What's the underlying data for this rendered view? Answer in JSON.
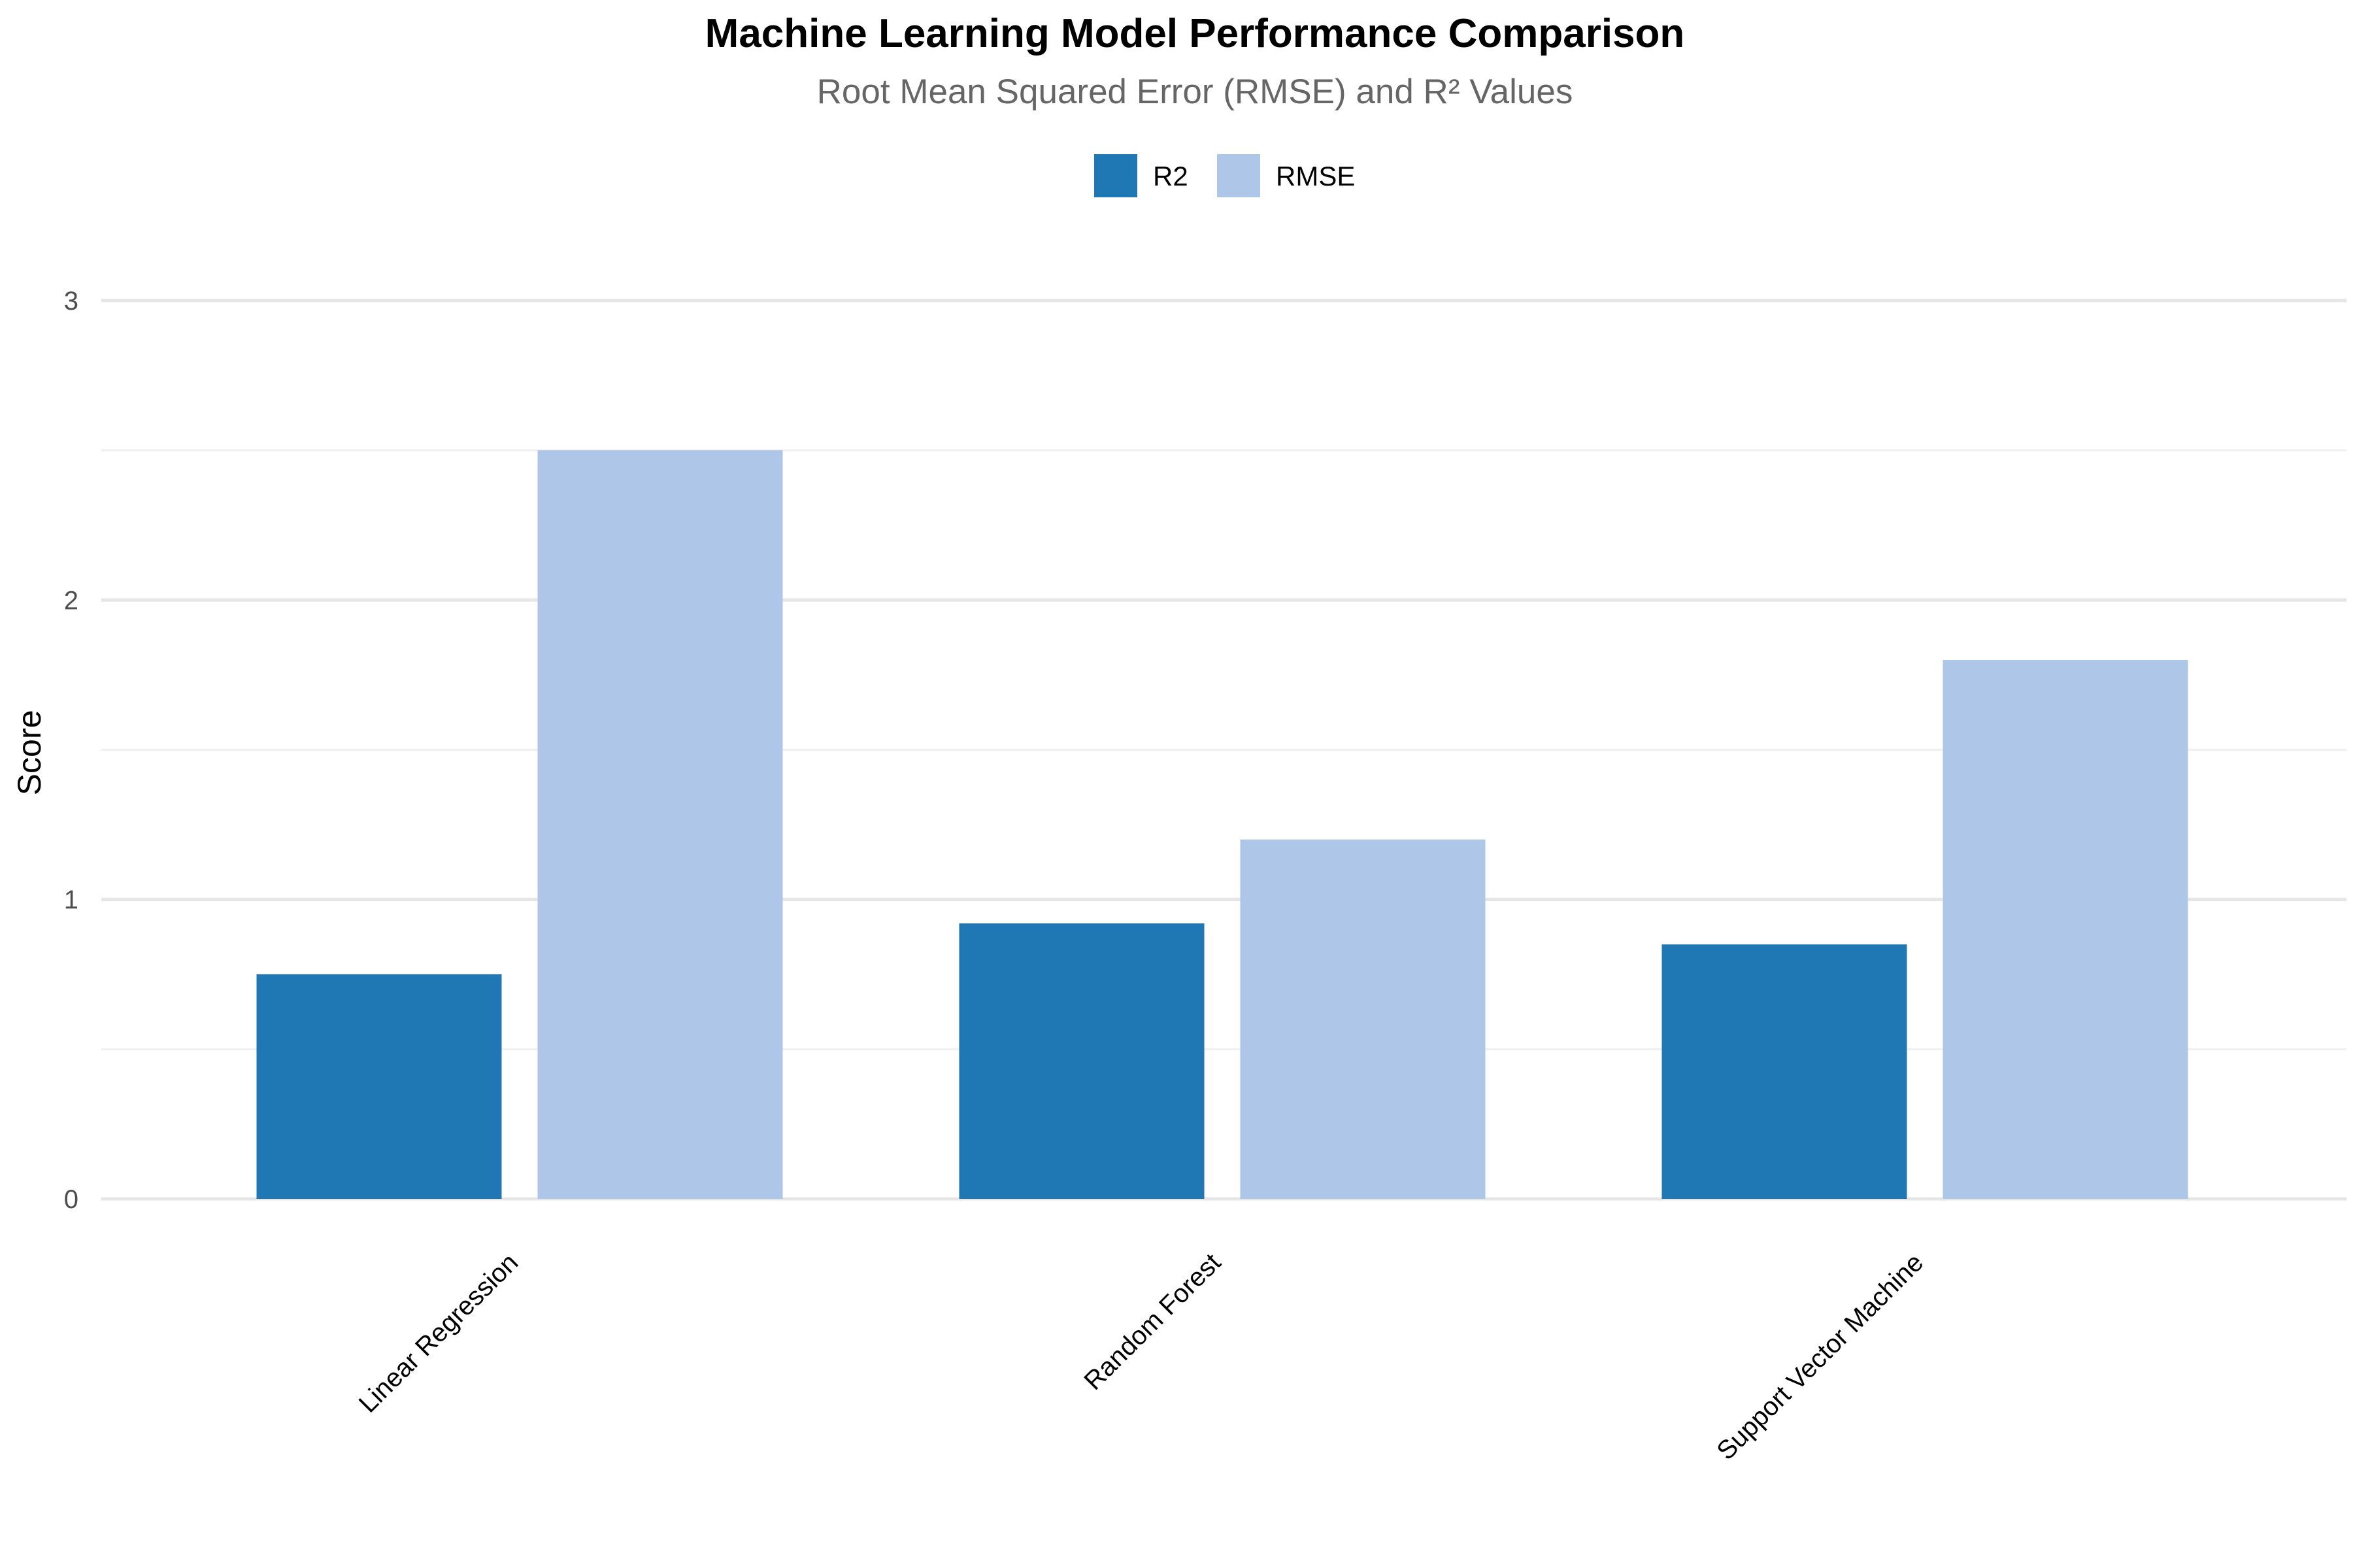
{
  "chart_data": {
    "type": "bar",
    "title": "Machine Learning Model Performance Comparison",
    "subtitle": "Root Mean Squared Error (RMSE) and R² Values",
    "xlabel": "",
    "ylabel": "Score",
    "categories": [
      "Linear Regression",
      "Random Forest",
      "Support Vector Machine"
    ],
    "series": [
      {
        "name": "R2",
        "color": "#1f77b4",
        "values": [
          0.75,
          0.92,
          0.85
        ]
      },
      {
        "name": "RMSE",
        "color": "#aec7e8",
        "values": [
          2.5,
          1.2,
          1.8
        ]
      }
    ],
    "ylim": [
      0,
      3
    ],
    "yticks": [
      0,
      1,
      2,
      3
    ],
    "grid": true,
    "legend_position": "top-center"
  }
}
